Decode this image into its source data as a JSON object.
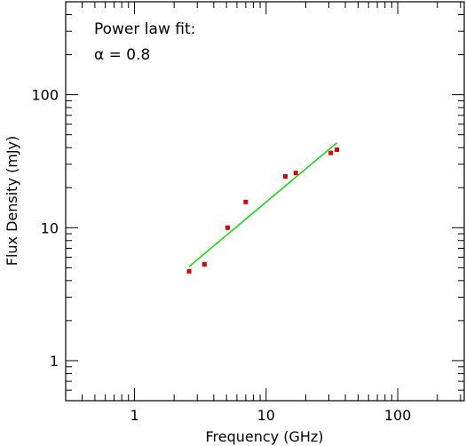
{
  "chart_data": {
    "type": "scatter",
    "x_scale": "log",
    "y_scale": "log",
    "xlabel": "Frequency (GHz)",
    "ylabel": "Flux Density (mJy)",
    "xlim": [
      0.3,
      320
    ],
    "ylim": [
      0.5,
      500
    ],
    "x_ticks": [
      {
        "value": 1,
        "label": "1"
      },
      {
        "value": 10,
        "label": "10"
      },
      {
        "value": 100,
        "label": "100"
      }
    ],
    "y_ticks": [
      {
        "value": 1,
        "label": "1"
      },
      {
        "value": 10,
        "label": "10"
      },
      {
        "value": 100,
        "label": "100"
      }
    ],
    "grid": false,
    "annotations": {
      "line1": "Power law fit:",
      "line2": "α = 0.8"
    },
    "points": {
      "color": "#e00000",
      "x": [
        2.6,
        3.4,
        5.1,
        7.0,
        14.0,
        16.8,
        31.0,
        34.5
      ],
      "y": [
        4.7,
        5.3,
        10.0,
        15.6,
        24.3,
        25.8,
        36.5,
        38.6
      ]
    },
    "fit": {
      "color": "#00e000",
      "x": [
        2.6,
        34.5
      ],
      "y": [
        5.1,
        43.5
      ]
    }
  }
}
